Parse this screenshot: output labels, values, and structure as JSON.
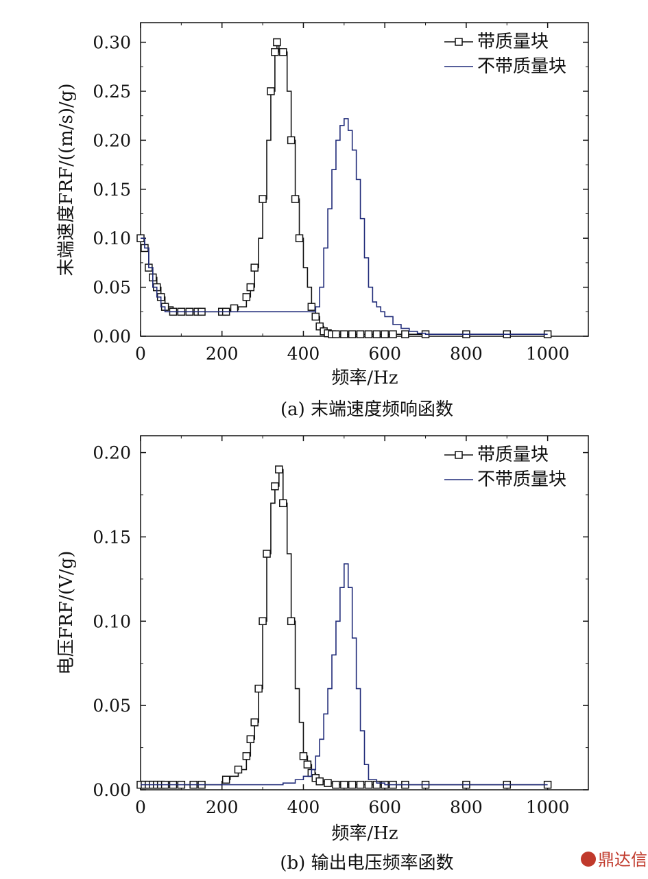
{
  "colors": {
    "series_with_mass": "#111111",
    "series_without_mass": "#1f2a78",
    "watermark": "#c0392b"
  },
  "watermark": "鼎达信",
  "chart_data": [
    {
      "type": "line",
      "caption": "(a) 末端速度频响函数",
      "xlabel": "频率/Hz",
      "ylabel": "末端速度FRF/((m/s)/g)",
      "xlim": [
        0,
        1100
      ],
      "ylim": [
        0,
        0.32
      ],
      "xticks": [
        0,
        200,
        400,
        600,
        800,
        1000
      ],
      "xtick_labels": [
        "0",
        "200",
        "400",
        "600",
        "800",
        "1000"
      ],
      "yticks": [
        0,
        0.05,
        0.1,
        0.15,
        0.2,
        0.25,
        0.3
      ],
      "ytick_labels": [
        "0.00",
        "0.05",
        "0.10",
        "0.15",
        "0.20",
        "0.25",
        "0.30"
      ],
      "legend_position": "top-right",
      "series": [
        {
          "name": "带质量块",
          "marker": "square",
          "x": [
            0,
            10,
            20,
            30,
            40,
            50,
            60,
            80,
            100,
            120,
            140,
            150,
            200,
            210,
            220,
            240,
            260,
            270,
            280,
            290,
            300,
            310,
            320,
            330,
            335,
            340,
            350,
            360,
            370,
            380,
            390,
            400,
            410,
            420,
            430,
            440,
            450,
            460,
            470,
            480,
            500,
            520,
            540,
            560,
            580,
            600,
            620,
            650,
            700,
            800,
            900,
            1000
          ],
          "y": [
            0.1,
            0.09,
            0.07,
            0.06,
            0.05,
            0.04,
            0.03,
            0.025,
            0.025,
            0.025,
            0.025,
            0.025,
            0.025,
            0.025,
            0.027,
            0.03,
            0.04,
            0.05,
            0.07,
            0.1,
            0.14,
            0.2,
            0.25,
            0.29,
            0.3,
            0.29,
            0.29,
            0.25,
            0.2,
            0.14,
            0.1,
            0.07,
            0.05,
            0.03,
            0.02,
            0.01,
            0.005,
            0.003,
            0.002,
            0.002,
            0.002,
            0.002,
            0.002,
            0.002,
            0.002,
            0.002,
            0.002,
            0.002,
            0.002,
            0.002,
            0.002,
            0.002
          ],
          "marker_x": [
            0,
            10,
            20,
            30,
            40,
            50,
            60,
            80,
            100,
            120,
            140,
            150,
            200,
            210,
            230,
            260,
            270,
            280,
            300,
            320,
            330,
            335,
            350,
            370,
            380,
            390,
            420,
            430,
            440,
            450,
            460,
            470,
            480,
            500,
            520,
            540,
            560,
            580,
            600,
            620,
            650,
            700,
            800,
            900,
            1000
          ]
        },
        {
          "name": "不带质量块",
          "marker": "none",
          "x": [
            0,
            10,
            20,
            30,
            40,
            50,
            60,
            80,
            100,
            150,
            200,
            250,
            300,
            350,
            400,
            420,
            430,
            440,
            450,
            460,
            470,
            480,
            490,
            500,
            510,
            520,
            530,
            540,
            550,
            560,
            570,
            580,
            590,
            600,
            620,
            640,
            660,
            680,
            700,
            750,
            800,
            900,
            1000
          ],
          "y": [
            0.1,
            0.09,
            0.07,
            0.05,
            0.04,
            0.03,
            0.025,
            0.025,
            0.025,
            0.025,
            0.025,
            0.025,
            0.025,
            0.025,
            0.025,
            0.025,
            0.03,
            0.05,
            0.09,
            0.13,
            0.17,
            0.2,
            0.215,
            0.222,
            0.21,
            0.19,
            0.16,
            0.12,
            0.08,
            0.05,
            0.035,
            0.03,
            0.025,
            0.02,
            0.012,
            0.008,
            0.005,
            0.003,
            0.002,
            0.002,
            0.002,
            0.002,
            0.002
          ]
        }
      ]
    },
    {
      "type": "line",
      "caption": "(b) 输出电压频率函数",
      "xlabel": "频率/Hz",
      "ylabel": "电压FRF/(V/g)",
      "xlim": [
        0,
        1100
      ],
      "ylim": [
        0,
        0.21
      ],
      "xticks": [
        0,
        200,
        400,
        600,
        800,
        1000
      ],
      "xtick_labels": [
        "0",
        "200",
        "400",
        "600",
        "800",
        "1000"
      ],
      "yticks": [
        0,
        0.05,
        0.1,
        0.15,
        0.2
      ],
      "ytick_labels": [
        "0.00",
        "0.05",
        "0.10",
        "0.15",
        "0.20"
      ],
      "legend_position": "top-right",
      "series": [
        {
          "name": "带质量块",
          "marker": "square",
          "x": [
            0,
            10,
            20,
            30,
            40,
            50,
            60,
            80,
            100,
            130,
            150,
            200,
            210,
            220,
            240,
            260,
            270,
            280,
            290,
            300,
            310,
            320,
            330,
            340,
            350,
            360,
            370,
            380,
            390,
            400,
            410,
            420,
            430,
            440,
            460,
            480,
            500,
            520,
            540,
            560,
            580,
            600,
            620,
            650,
            700,
            800,
            900,
            1000
          ],
          "y": [
            0.003,
            0.003,
            0.003,
            0.003,
            0.003,
            0.003,
            0.003,
            0.003,
            0.003,
            0.003,
            0.003,
            0.005,
            0.006,
            0.008,
            0.012,
            0.02,
            0.03,
            0.04,
            0.06,
            0.1,
            0.14,
            0.17,
            0.18,
            0.19,
            0.17,
            0.14,
            0.1,
            0.06,
            0.04,
            0.02,
            0.015,
            0.01,
            0.007,
            0.005,
            0.004,
            0.003,
            0.003,
            0.003,
            0.003,
            0.003,
            0.003,
            0.003,
            0.003,
            0.003,
            0.003,
            0.003,
            0.003,
            0.003
          ],
          "marker_x": [
            0,
            10,
            20,
            30,
            40,
            50,
            60,
            80,
            100,
            130,
            150,
            210,
            240,
            260,
            270,
            280,
            290,
            300,
            310,
            330,
            340,
            350,
            370,
            400,
            410,
            420,
            430,
            440,
            460,
            480,
            500,
            520,
            540,
            560,
            580,
            600,
            620,
            650,
            700,
            800,
            900,
            1000
          ]
        },
        {
          "name": "不带质量块",
          "marker": "none",
          "x": [
            0,
            100,
            200,
            250,
            300,
            350,
            380,
            400,
            420,
            430,
            440,
            450,
            460,
            470,
            480,
            490,
            500,
            510,
            520,
            530,
            540,
            550,
            560,
            580,
            600,
            700,
            800,
            900,
            1000
          ],
          "y": [
            0.003,
            0.003,
            0.003,
            0.003,
            0.003,
            0.004,
            0.006,
            0.008,
            0.012,
            0.02,
            0.03,
            0.045,
            0.06,
            0.08,
            0.1,
            0.12,
            0.134,
            0.12,
            0.09,
            0.06,
            0.035,
            0.015,
            0.006,
            0.004,
            0.003,
            0.003,
            0.003,
            0.003,
            0.003
          ]
        }
      ]
    }
  ]
}
